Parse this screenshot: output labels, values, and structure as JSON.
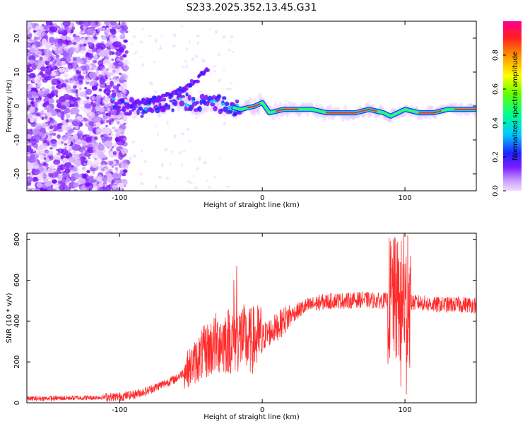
{
  "figure_title": "S233.2025.352.13.45.G31",
  "chart_data": [
    {
      "type": "heatmap",
      "title": "S233.2025.352.13.45.G31",
      "xlabel": "Height of straight line (km)",
      "ylabel": "Frequency (Hz)",
      "xlim": [
        -165,
        150
      ],
      "ylim": [
        -25,
        25
      ],
      "x_ticks": [
        -100,
        0,
        100
      ],
      "y_ticks": [
        -20,
        -10,
        0,
        10,
        20
      ],
      "colorbar": {
        "label": "Normalized spectral amplitude",
        "range": [
          0,
          1
        ],
        "ticks": [
          0.0,
          0.2,
          0.4,
          0.6,
          0.8
        ]
      },
      "signal_track": {
        "x": [
          -105,
          -95,
          -85,
          -75,
          -65,
          -55,
          -45,
          -35,
          -25,
          -15,
          -5,
          0,
          5,
          15,
          25,
          35,
          45,
          55,
          65,
          75,
          85,
          90,
          95,
          100,
          110,
          120,
          130,
          140,
          150
        ],
        "y": [
          1,
          0,
          -1,
          0,
          1,
          2,
          0,
          1,
          0,
          -1,
          0,
          1,
          -2,
          -1,
          -1,
          -1,
          -2,
          -2,
          -2,
          -1,
          -2,
          -3,
          -2,
          -1,
          -2,
          -2,
          -1,
          -1,
          -1
        ]
      },
      "upper_branch": {
        "x": [
          -95,
          -85,
          -75,
          -65,
          -55,
          -45,
          -38
        ],
        "y": [
          0,
          1,
          2,
          3,
          5,
          8,
          11
        ]
      },
      "noise_region_x": [
        -165,
        -100
      ]
    },
    {
      "type": "line",
      "xlabel": "Height of straight line (km)",
      "ylabel": "SNR (10 * v/v)",
      "xlim": [
        -165,
        150
      ],
      "ylim": [
        0,
        830
      ],
      "x_ticks": [
        -100,
        0,
        100
      ],
      "y_ticks": [
        0,
        200,
        400,
        600,
        800
      ],
      "series": [
        {
          "name": "SNR",
          "color": "#ff2a2a",
          "envelope_x": [
            -165,
            -120,
            -100,
            -90,
            -80,
            -70,
            -60,
            -50,
            -40,
            -30,
            -20,
            -15,
            -10,
            0,
            10,
            20,
            30,
            40,
            50,
            60,
            70,
            80,
            90,
            95,
            100,
            105,
            110,
            120,
            130,
            140,
            150
          ],
          "envelope_y": [
            20,
            25,
            30,
            40,
            60,
            90,
            120,
            180,
            250,
            300,
            310,
            320,
            300,
            320,
            370,
            430,
            470,
            490,
            500,
            500,
            505,
            500,
            500,
            490,
            480,
            490,
            490,
            480,
            480,
            480,
            480
          ],
          "spikes": [
            {
              "x": -18,
              "y": 670
            },
            {
              "x": -20,
              "y": 600
            },
            {
              "x": 92,
              "y": 800
            },
            {
              "x": 97,
              "y": 80
            },
            {
              "x": 99,
              "y": 830
            },
            {
              "x": 101,
              "y": 40
            },
            {
              "x": 102,
              "y": 820
            }
          ]
        }
      ]
    }
  ]
}
